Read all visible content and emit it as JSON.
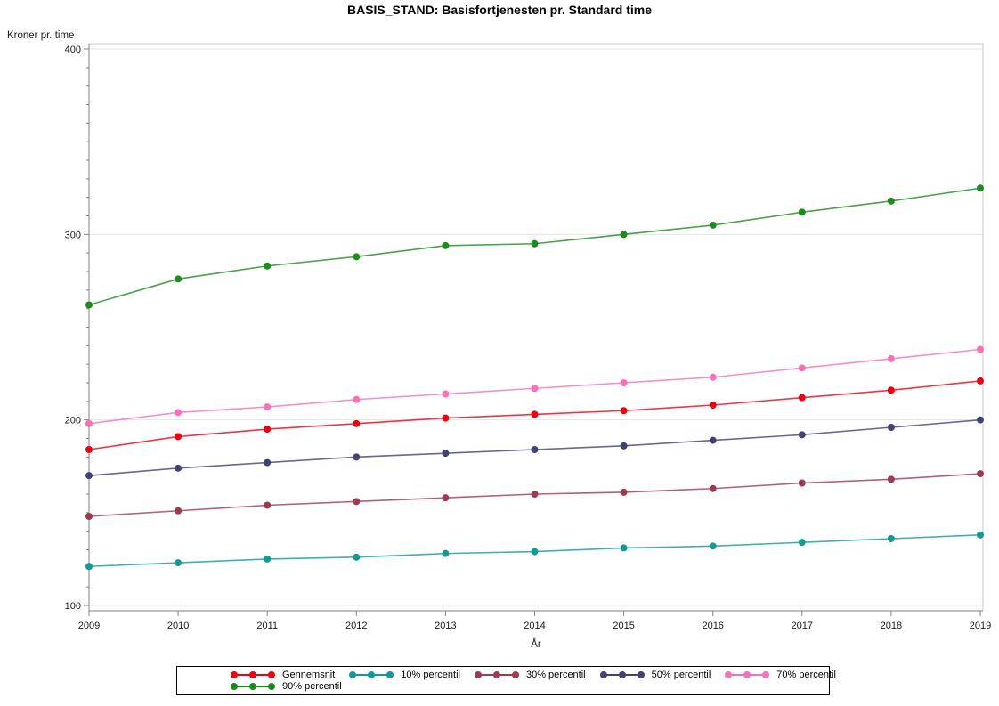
{
  "chart_data": {
    "type": "line",
    "title": "BASIS_STAND: Basisfortjenesten pr. Standard time",
    "xlabel": "År",
    "ylabel": "Kroner pr. time",
    "x": [
      2009,
      2010,
      2011,
      2012,
      2013,
      2014,
      2015,
      2016,
      2017,
      2018,
      2019
    ],
    "ylim": [
      100,
      400
    ],
    "y_major_ticks": [
      100,
      200,
      300,
      400
    ],
    "y_minor_step": 10,
    "grid": true,
    "legend_position": "bottom",
    "legend_rows": [
      [
        0,
        1,
        2,
        3,
        4
      ],
      [
        5
      ]
    ],
    "series": [
      {
        "name": "Gennemsnit",
        "color": "#ee0011",
        "values": [
          184,
          191,
          195,
          198,
          201,
          203,
          205,
          208,
          212,
          216,
          221
        ]
      },
      {
        "name": "10% percentil",
        "color": "#149a96",
        "values": [
          121,
          123,
          125,
          126,
          128,
          129,
          131,
          132,
          134,
          136,
          138
        ]
      },
      {
        "name": "30% percentil",
        "color": "#9e3a4e",
        "values": [
          148,
          151,
          154,
          156,
          158,
          160,
          161,
          163,
          166,
          168,
          171
        ]
      },
      {
        "name": "50% percentil",
        "color": "#414173",
        "values": [
          170,
          174,
          177,
          180,
          182,
          184,
          186,
          189,
          192,
          196,
          200
        ]
      },
      {
        "name": "70% percentil",
        "color": "#fa70b5",
        "values": [
          198,
          204,
          207,
          211,
          214,
          217,
          220,
          223,
          228,
          233,
          238
        ]
      },
      {
        "name": "90% percentil",
        "color": "#1c8c1c",
        "values": [
          262,
          276,
          283,
          288,
          294,
          295,
          300,
          305,
          312,
          318,
          325
        ]
      }
    ],
    "colors": {
      "grid": "#e4e4e4",
      "frame": "#c9c9c9",
      "axis": "#828282",
      "tick_label": "#1a1a1a",
      "legend_border": "#000000"
    }
  }
}
